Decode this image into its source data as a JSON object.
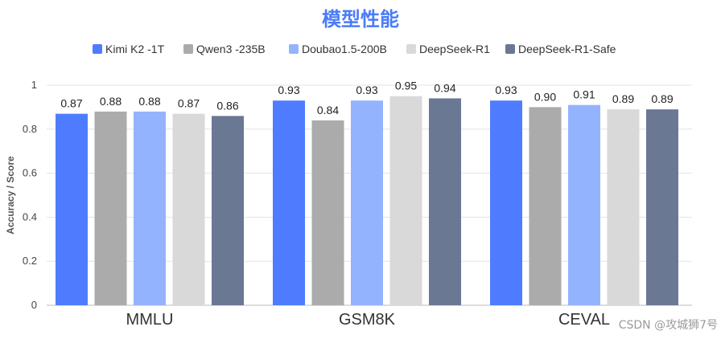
{
  "chart_data": {
    "type": "bar",
    "title": "模型性能",
    "title_color": "#4a7cf7",
    "ylabel": "Accuracy / Score",
    "xlabel": "",
    "ylim": [
      0,
      1
    ],
    "yticks": [
      "0",
      "0.2",
      "0.4",
      "0.6",
      "0.8",
      "1"
    ],
    "grid": true,
    "legend_position": "top-center",
    "categories": [
      "MMLU",
      "GSM8K",
      "CEVAL"
    ],
    "series": [
      {
        "name": "Kimi K2 -1T",
        "color": "#4f7cff",
        "values": [
          0.87,
          0.93,
          0.93
        ],
        "labels": [
          "0.87",
          "0.93",
          "0.93"
        ]
      },
      {
        "name": "Qwen3 -235B",
        "color": "#ababab",
        "values": [
          0.88,
          0.84,
          0.9
        ],
        "labels": [
          "0.88",
          "0.84",
          "0.90"
        ]
      },
      {
        "name": "Doubao1.5-200B",
        "color": "#94b3ff",
        "values": [
          0.88,
          0.93,
          0.91
        ],
        "labels": [
          "0.88",
          "0.93",
          "0.91"
        ]
      },
      {
        "name": "DeepSeek-R1",
        "color": "#d9d9d9",
        "values": [
          0.87,
          0.95,
          0.89
        ],
        "labels": [
          "0.87",
          "0.95",
          "0.89"
        ]
      },
      {
        "name": "DeepSeek-R1-Safe",
        "color": "#6b7894",
        "values": [
          0.86,
          0.94,
          0.89
        ],
        "labels": [
          "0.86",
          "0.94",
          "0.89"
        ]
      }
    ]
  },
  "watermark": "CSDN @攻城狮7号"
}
